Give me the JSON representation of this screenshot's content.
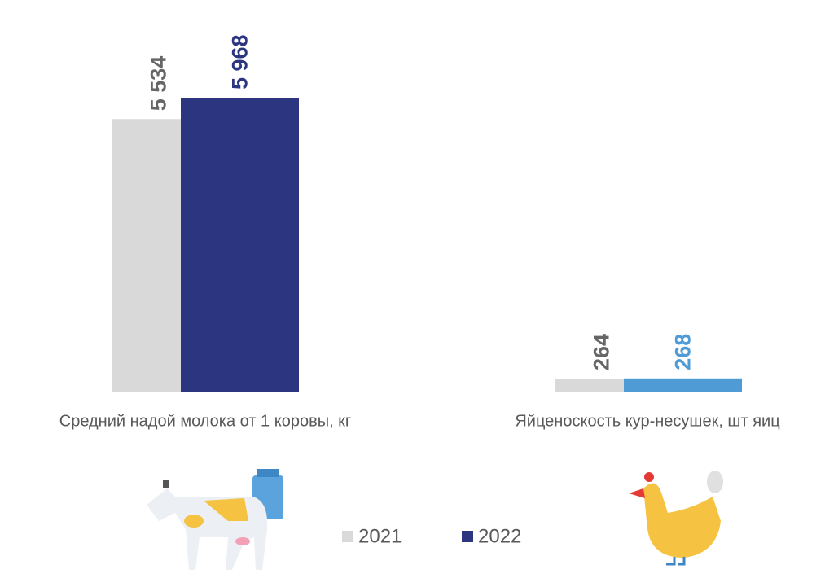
{
  "chart_data": {
    "type": "bar",
    "categories": [
      "Средний надой молока от 1 коровы, кг",
      "Яйценоскость кур-несушек, шт яиц"
    ],
    "series": [
      {
        "name": "2021",
        "color": "#d9d9d9",
        "label_color": "#666666",
        "values": [
          5534,
          264
        ],
        "value_labels": [
          "5 534",
          "264"
        ]
      },
      {
        "name": "2022",
        "color": "#2b3580",
        "colors": [
          "#2b3580",
          "#4f9bd5"
        ],
        "values": [
          5968,
          268
        ],
        "value_labels": [
          "5 968",
          "268"
        ]
      }
    ]
  }
}
